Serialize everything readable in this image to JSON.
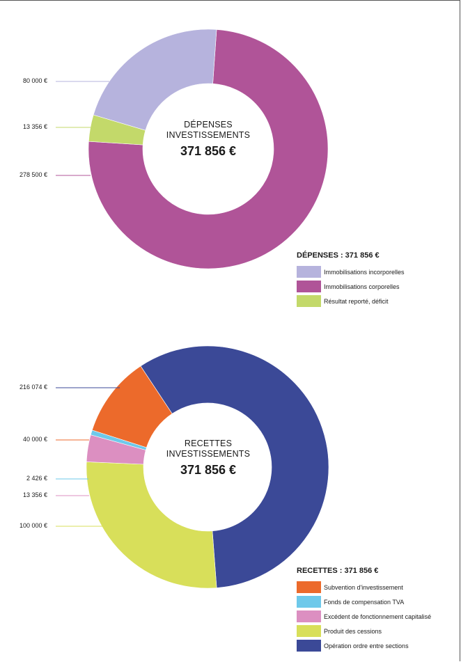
{
  "chart_data": [
    {
      "type": "pie",
      "center_title": "DÉPENSES\nINVESTISSEMENTS",
      "center_total": "371 856 €",
      "legend_title": "DÉPENSES : 371 856 €",
      "categories": [
        "Immobilisations incorporelles",
        "Immobilisations corporelles",
        "Résultat reporté, déficit"
      ],
      "values": [
        80000,
        278500,
        13356
      ],
      "value_labels": [
        "80 000 €",
        "278 500 €",
        "13 356 €"
      ],
      "colors": [
        "#b6b3dd",
        "#b05498",
        "#c3d96a"
      ],
      "legend_position": "bottom-right"
    },
    {
      "type": "pie",
      "center_title": "RECETTES\nINVESTISSEMENTS",
      "center_total": "371 856 €",
      "legend_title": "RECETTES : 371 856 €",
      "categories": [
        "Subvention d'investissement",
        "Fonds de compensation TVA",
        "Excédent de fonctionnement capitalisé",
        "Produit des cessions",
        "Opération ordre entre sections"
      ],
      "values": [
        40000,
        2426,
        13356,
        100000,
        216074
      ],
      "value_labels": [
        "40 000 €",
        "2 426 €",
        "13 356 €",
        "100 000 €",
        "216 074 €"
      ],
      "colors": [
        "#ec6a2b",
        "#6ec9ea",
        "#dc8fc1",
        "#d8df5a",
        "#3b4997"
      ],
      "legend_position": "bottom-right"
    }
  ]
}
